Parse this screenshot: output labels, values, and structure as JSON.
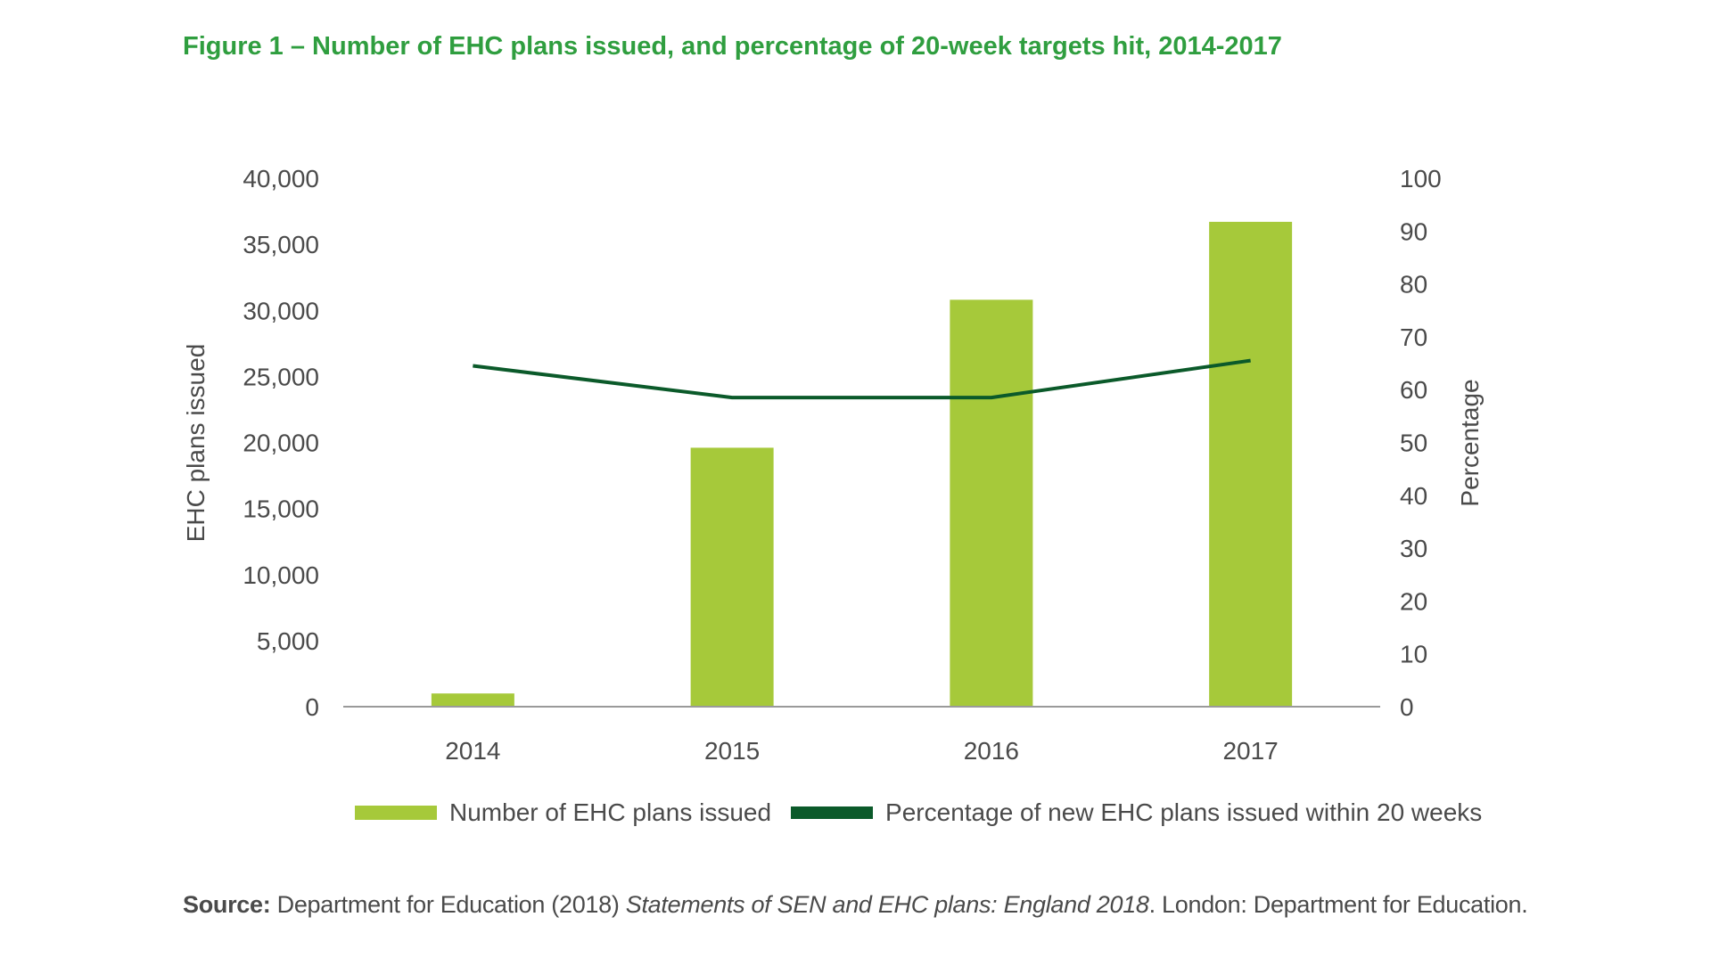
{
  "title": "Figure 1 – Number of EHC plans issued, and percentage of 20-week targets hit, 2014-2017",
  "chart_data": {
    "type": "bar",
    "categories": [
      "2014",
      "2015",
      "2016",
      "2017"
    ],
    "series": [
      {
        "name": "Number of EHC plans issued",
        "type": "bar",
        "axis": "left",
        "values": [
          1000,
          19600,
          30800,
          36700
        ],
        "color": "#a6c93a"
      },
      {
        "name": "Percentage of new EHC plans issued within 20 weeks",
        "type": "line",
        "axis": "right",
        "values": [
          64.5,
          58.5,
          58.5,
          65.5
        ],
        "color": "#0b5a2a"
      }
    ],
    "ylabel": "EHC plans issued",
    "ylim": [
      0,
      40000
    ],
    "yticks": [
      "0",
      "5,000",
      "10,000",
      "15,000",
      "20,000",
      "25,000",
      "30,000",
      "35,000",
      "40,000"
    ],
    "y2label": "Percentage",
    "y2lim": [
      0,
      100
    ],
    "y2ticks": [
      "0",
      "10",
      "20",
      "30",
      "40",
      "50",
      "60",
      "70",
      "80",
      "90",
      "100"
    ],
    "legend_position": "bottom",
    "grid": false
  },
  "legend": {
    "bar_label": "Number of EHC plans issued",
    "line_label": "Percentage of new EHC plans issued within 20 weeks"
  },
  "source": {
    "prefix": "Source:",
    "text_before": " Department for Education (2018) ",
    "italic": "Statements of SEN and EHC plans: England 2018",
    "text_after": ". London: Department for Education."
  }
}
